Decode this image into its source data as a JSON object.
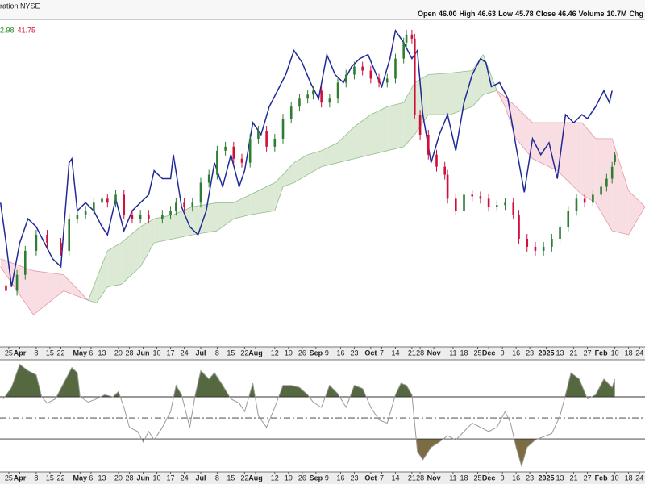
{
  "chart_data": [
    {
      "type": "candlestick",
      "title": "ration NYSE",
      "quote": [
        {
          "label": "Open",
          "value": "46.00"
        },
        {
          "label": "High",
          "value": "46.63"
        },
        {
          "label": "Low",
          "value": "45.78"
        },
        {
          "label": "Close",
          "value": "46.46"
        },
        {
          "label": "Volume",
          "value": "10.7M"
        },
        {
          "label": "Chg"
        }
      ],
      "cloud_labels": [
        {
          "text": "2.98",
          "color": "#2a8a2a"
        },
        {
          "text": "41.75",
          "color": "#d01030"
        }
      ],
      "xlim": [
        -3.2,
        232
      ],
      "ylim": [
        34.46,
        54.86
      ],
      "xticks": [
        {
          "value": 0,
          "label": "25"
        },
        {
          "value": 4,
          "label": "Apr"
        },
        {
          "value": 10,
          "label": "8"
        },
        {
          "value": 15,
          "label": "15"
        },
        {
          "value": 19,
          "label": "22"
        },
        {
          "value": 26,
          "label": "May"
        },
        {
          "value": 30,
          "label": "6"
        },
        {
          "value": 34,
          "label": "13"
        },
        {
          "value": 40,
          "label": "20"
        },
        {
          "value": 44,
          "label": "28"
        },
        {
          "value": 49,
          "label": "Jun"
        },
        {
          "value": 54,
          "label": "10"
        },
        {
          "value": 59,
          "label": "17"
        },
        {
          "value": 64,
          "label": "24"
        },
        {
          "value": 70,
          "label": "Jul"
        },
        {
          "value": 76,
          "label": "8"
        },
        {
          "value": 81,
          "label": "15"
        },
        {
          "value": 86,
          "label": "22"
        },
        {
          "value": 90,
          "label": "Aug"
        },
        {
          "value": 97,
          "label": "12"
        },
        {
          "value": 102,
          "label": "19"
        },
        {
          "value": 107,
          "label": "26"
        },
        {
          "value": 112,
          "label": "Sep"
        },
        {
          "value": 116,
          "label": "9"
        },
        {
          "value": 121,
          "label": "16"
        },
        {
          "value": 126,
          "label": "23"
        },
        {
          "value": 132,
          "label": "Oct"
        },
        {
          "value": 136,
          "label": "7"
        },
        {
          "value": 141,
          "label": "14"
        },
        {
          "value": 147,
          "label": "21"
        },
        {
          "value": 150,
          "label": "28"
        },
        {
          "value": 155,
          "label": "Nov"
        },
        {
          "value": 162,
          "label": "11"
        },
        {
          "value": 166,
          "label": "18"
        },
        {
          "value": 171,
          "label": "25"
        },
        {
          "value": 175,
          "label": "Dec"
        },
        {
          "value": 180,
          "label": "9"
        },
        {
          "value": 185,
          "label": "16"
        },
        {
          "value": 190,
          "label": "23"
        },
        {
          "value": 196,
          "label": "2025"
        },
        {
          "value": 201,
          "label": "13"
        },
        {
          "value": 206,
          "label": "21"
        },
        {
          "value": 211,
          "label": "27"
        },
        {
          "value": 216,
          "label": "Feb"
        },
        {
          "value": 221,
          "label": "10"
        },
        {
          "value": 226,
          "label": "18"
        },
        {
          "value": 230,
          "label": "24"
        }
      ],
      "up_color": "#2e7d32",
      "down_color": "#d0103a",
      "x": [
        -1,
        3,
        6,
        10,
        14,
        19,
        22,
        25,
        28,
        31,
        34,
        36,
        39,
        42,
        45,
        48,
        51,
        56,
        59,
        61,
        64,
        67,
        70,
        73,
        76,
        79,
        82,
        85,
        88,
        91,
        94,
        97,
        100,
        103,
        106,
        109,
        111,
        114,
        117,
        120,
        123,
        126,
        129,
        132,
        135,
        138,
        141,
        144,
        145,
        147,
        148,
        150,
        153,
        156,
        159,
        160,
        163,
        166,
        169,
        172,
        175,
        178,
        181,
        184,
        186,
        189,
        192,
        195,
        198,
        201,
        204,
        207,
        210,
        213,
        216,
        218,
        220,
        221
      ],
      "open": [
        38.3,
        37.96,
        38.96,
        40.46,
        41.46,
        40.96,
        40.46,
        42.46,
        42.71,
        42.96,
        43.46,
        43.71,
        43.46,
        43.96,
        42.71,
        42.46,
        42.71,
        42.46,
        42.71,
        42.96,
        43.46,
        43.21,
        43.46,
        44.71,
        45.21,
        46.71,
        46.96,
        46.21,
        45.96,
        47.46,
        47.96,
        46.96,
        47.46,
        48.71,
        49.46,
        49.96,
        50.21,
        50.46,
        49.71,
        49.96,
        50.96,
        51.46,
        51.96,
        51.71,
        51.21,
        50.96,
        51.21,
        52.46,
        53.46,
        53.96,
        53.71,
        48.96,
        47.71,
        46.46,
        45.71,
        45.21,
        43.71,
        42.96,
        43.96,
        43.86,
        43.71,
        43.21,
        43.31,
        43.46,
        42.71,
        41.21,
        40.71,
        40.46,
        40.71,
        41.21,
        41.96,
        42.96,
        43.71,
        43.46,
        43.96,
        44.46,
        44.96,
        46.0
      ],
      "high": [
        38.6,
        39.26,
        40.76,
        41.76,
        41.76,
        41.26,
        42.76,
        43.01,
        43.26,
        43.76,
        44.01,
        44.01,
        44.26,
        44.26,
        43.01,
        43.01,
        43.01,
        43.01,
        43.26,
        43.76,
        43.76,
        43.76,
        45.01,
        45.51,
        47.01,
        47.26,
        47.26,
        46.51,
        47.76,
        48.26,
        48.26,
        47.76,
        49.01,
        49.76,
        50.26,
        50.51,
        50.76,
        50.76,
        50.26,
        51.26,
        51.76,
        52.26,
        52.26,
        52.01,
        51.51,
        51.51,
        52.76,
        53.76,
        54.26,
        54.26,
        54.01,
        49.26,
        48.01,
        46.76,
        46.01,
        45.51,
        44.01,
        44.26,
        44.26,
        44.16,
        44.01,
        43.61,
        43.76,
        43.76,
        43.01,
        41.51,
        41.01,
        41.01,
        41.51,
        42.26,
        43.26,
        44.01,
        44.01,
        44.26,
        44.76,
        45.26,
        46.01,
        46.63
      ],
      "low": [
        37.66,
        37.66,
        38.66,
        40.16,
        40.66,
        40.16,
        40.16,
        42.16,
        42.41,
        42.66,
        43.16,
        43.16,
        43.16,
        42.41,
        42.16,
        42.16,
        42.16,
        42.16,
        42.41,
        42.66,
        42.91,
        42.91,
        43.16,
        44.41,
        44.91,
        46.41,
        45.91,
        45.66,
        45.66,
        47.16,
        46.66,
        46.66,
        47.16,
        48.41,
        49.16,
        49.66,
        49.91,
        49.41,
        49.41,
        49.66,
        50.66,
        51.16,
        51.41,
        50.91,
        50.66,
        50.66,
        50.91,
        52.16,
        53.16,
        53.41,
        48.66,
        47.41,
        46.16,
        45.41,
        44.91,
        43.41,
        42.66,
        42.66,
        43.56,
        43.41,
        42.91,
        42.91,
        43.01,
        42.41,
        40.91,
        40.41,
        40.16,
        40.16,
        40.41,
        40.91,
        41.66,
        42.66,
        43.16,
        43.16,
        43.66,
        44.16,
        44.66,
        45.78
      ],
      "close": [
        37.96,
        38.96,
        40.46,
        41.46,
        40.96,
        40.46,
        42.46,
        42.71,
        42.96,
        43.46,
        43.71,
        43.46,
        43.96,
        42.71,
        42.46,
        42.71,
        42.46,
        42.71,
        42.96,
        43.46,
        43.21,
        43.46,
        44.71,
        45.21,
        46.71,
        46.96,
        46.21,
        45.96,
        47.46,
        47.96,
        46.96,
        47.46,
        48.71,
        49.46,
        49.96,
        50.21,
        50.46,
        49.71,
        49.96,
        50.96,
        51.46,
        51.96,
        51.71,
        51.21,
        50.96,
        51.21,
        52.46,
        53.46,
        53.96,
        53.71,
        48.96,
        47.71,
        46.46,
        45.71,
        45.21,
        43.71,
        42.96,
        43.96,
        43.86,
        43.71,
        43.21,
        43.31,
        43.46,
        42.71,
        41.21,
        40.71,
        40.46,
        40.71,
        41.21,
        41.96,
        42.96,
        43.71,
        43.46,
        43.96,
        44.46,
        44.96,
        45.71,
        46.46
      ],
      "line": {
        "color": "#1f2a96",
        "x": [
          -3,
          -1,
          1,
          4,
          7,
          10,
          13,
          16,
          19,
          22,
          23,
          25,
          28,
          31,
          34,
          36,
          39,
          42,
          45,
          48,
          51,
          53,
          56,
          59,
          60,
          63,
          66,
          69,
          72,
          75,
          78,
          81,
          84,
          86,
          89,
          92,
          95,
          98,
          101,
          104,
          107,
          110,
          113,
          116,
          119,
          122,
          125,
          128,
          131,
          134,
          136,
          139,
          141,
          144,
          147,
          149,
          151,
          154,
          157,
          160,
          163,
          166,
          169,
          172,
          174,
          176,
          179,
          182,
          185,
          188,
          191,
          194,
          197,
          200,
          203,
          206,
          209,
          211,
          214,
          217,
          219,
          220
        ],
        "values": [
          43.46,
          40.96,
          38.21,
          40.96,
          42.46,
          41.96,
          40.96,
          39.96,
          39.46,
          45.96,
          46.21,
          42.96,
          43.46,
          42.96,
          41.96,
          41.46,
          43.71,
          41.71,
          42.96,
          43.46,
          43.96,
          45.46,
          44.96,
          44.96,
          46.46,
          43.21,
          41.96,
          41.46,
          42.96,
          45.96,
          44.46,
          46.46,
          44.46,
          45.46,
          48.46,
          47.71,
          49.46,
          50.46,
          51.46,
          52.96,
          52.21,
          50.96,
          49.96,
          52.71,
          51.46,
          50.96,
          51.96,
          52.46,
          52.71,
          51.46,
          50.71,
          52.46,
          54.21,
          53.46,
          52.46,
          52.96,
          48.96,
          45.96,
          47.71,
          48.96,
          46.71,
          49.71,
          51.46,
          52.46,
          52.21,
          50.71,
          50.96,
          49.96,
          46.96,
          44.11,
          47.46,
          46.46,
          47.21,
          44.96,
          48.96,
          48.46,
          48.96,
          48.71,
          49.46,
          50.46,
          49.71,
          50.46
        ]
      },
      "cloud": {
        "bull_color": "#dbe9d5",
        "bull_edge": "#8fbf8a",
        "bear_color": "#f8dde2",
        "bear_edge": "#e59aa6",
        "x": [
          -3,
          9,
          20,
          29,
          32,
          36,
          41,
          48,
          53,
          60,
          67,
          76,
          82,
          88,
          97,
          100,
          104,
          109,
          114,
          120,
          126,
          132,
          138,
          144,
          148,
          153,
          161,
          169,
          173,
          178,
          181,
          185,
          191,
          200,
          209,
          214,
          220,
          226,
          232
        ],
        "span_a": [
          39.46,
          36.46,
          37.96,
          37.36,
          38.71,
          40.46,
          40.96,
          41.96,
          42.46,
          42.71,
          43.21,
          43.46,
          43.46,
          43.96,
          44.71,
          45.21,
          45.96,
          46.46,
          46.71,
          47.21,
          48.21,
          48.96,
          49.46,
          49.71,
          50.96,
          51.46,
          51.56,
          51.71,
          52.71,
          50.46,
          49.46,
          47.46,
          46.21,
          45.46,
          43.96,
          43.46,
          41.71,
          41.46,
          43.21
        ],
        "span_b": [
          39.96,
          39.21,
          38.96,
          37.36,
          37.21,
          38.21,
          38.36,
          39.46,
          40.96,
          41.21,
          41.46,
          41.71,
          42.46,
          42.71,
          42.96,
          44.46,
          44.71,
          45.21,
          45.71,
          45.96,
          46.21,
          46.46,
          46.71,
          46.96,
          47.71,
          48.96,
          48.96,
          49.46,
          50.21,
          50.46,
          50.06,
          49.46,
          48.46,
          48.46,
          48.46,
          47.46,
          47.46,
          44.21,
          43.21
        ]
      }
    },
    {
      "type": "line",
      "xlim": [
        -3.2,
        232
      ],
      "ylim": [
        -1.5,
        104.6
      ],
      "levels": [
        30,
        50,
        70
      ],
      "color": "#9a9a9a",
      "fill_above_color": "#56683f",
      "fill_below_color": "#7b6c42",
      "x": [
        -2,
        1,
        4,
        7,
        10,
        12,
        14,
        17,
        20,
        23,
        25,
        26,
        29,
        32,
        35,
        38,
        40,
        42,
        44,
        47,
        49,
        51,
        53,
        56,
        59,
        61,
        63,
        66,
        68,
        70,
        73,
        75,
        78,
        81,
        84,
        86,
        89,
        91,
        94,
        97,
        100,
        103,
        106,
        109,
        111,
        114,
        117,
        120,
        123,
        126,
        129,
        132,
        135,
        138,
        141,
        143,
        145,
        147,
        149,
        151,
        154,
        157,
        160,
        163,
        166,
        169,
        172,
        175,
        178,
        181,
        183,
        185,
        187,
        189,
        192,
        195,
        198,
        201,
        203,
        205,
        208,
        211,
        214,
        217,
        220,
        221
      ],
      "values": [
        68,
        79,
        101,
        95,
        91,
        70,
        64,
        68,
        83,
        98,
        93,
        70,
        65,
        68,
        72,
        70,
        75,
        60,
        41,
        37,
        27,
        37,
        29,
        41,
        56,
        81,
        72,
        41,
        72,
        95,
        87,
        93,
        81,
        68,
        64,
        56,
        83,
        52,
        41,
        60,
        81,
        81,
        79,
        72,
        65,
        60,
        81,
        73,
        60,
        81,
        78,
        60,
        48,
        45,
        72,
        83,
        81,
        72,
        18,
        10,
        22,
        27,
        33,
        29,
        37,
        45,
        41,
        37,
        41,
        56,
        45,
        22,
        4,
        22,
        29,
        32,
        35,
        52,
        72,
        93,
        87,
        68,
        72,
        87,
        79,
        87
      ]
    }
  ]
}
